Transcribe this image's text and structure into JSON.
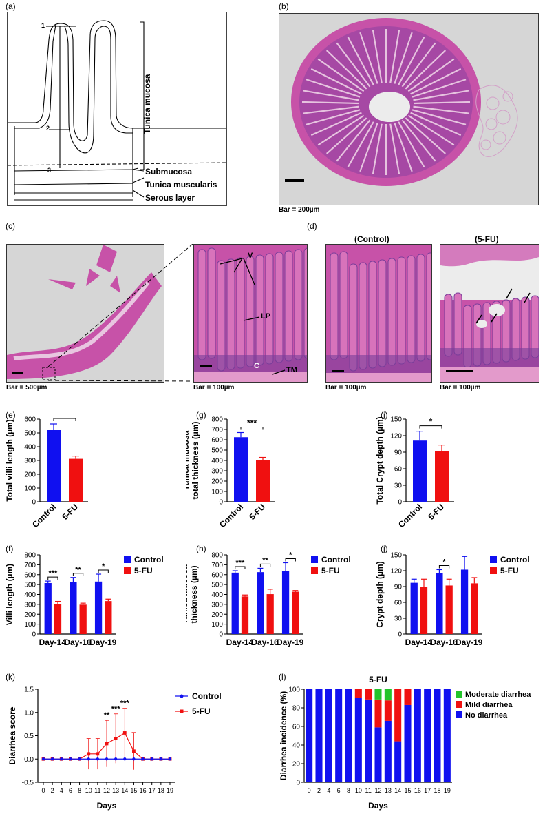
{
  "panels": {
    "a": "(a)",
    "b": "(b)",
    "c": "(c)",
    "d": "(d)",
    "e": "(e)",
    "f": "(f)",
    "g": "(g)",
    "h": "(h)",
    "i": "(i)",
    "j": "(j)",
    "k": "(k)",
    "l": "(l)"
  },
  "diagram": {
    "marks": [
      "1",
      "2",
      "3"
    ],
    "labels": {
      "tunica_mucosa": "Tunica mucosa",
      "submucosa": "Submucosa",
      "tunica_muscularis": "Tunica muscularis",
      "serous_layer": "Serous layer"
    }
  },
  "micrographs": {
    "b": {
      "scale": "Bar = 200µm"
    },
    "c_left": {
      "scale": "Bar = 500µm"
    },
    "c_right": {
      "scale": "Bar = 100µm",
      "labels": [
        "V",
        "LP",
        "C",
        "TM"
      ]
    },
    "d_control": {
      "title": "(Control)",
      "scale": "Bar = 100µm"
    },
    "d_5fu": {
      "title": "(5-FU)",
      "scale": "Bar = 100µm"
    }
  },
  "colors": {
    "control": "#1010f0",
    "fu": "#f01010",
    "moderate": "#22c42a",
    "tissue": "#c64fa6",
    "slide": "#d8d8d8"
  },
  "chart_data": [
    {
      "panel": "e",
      "type": "bar",
      "categories": [
        "Control",
        "5-FU"
      ],
      "values": [
        520,
        312
      ],
      "errors": [
        45,
        20
      ],
      "ylabel": "Total villi length (µm)",
      "ylim": [
        0,
        600
      ],
      "yticks": [
        "0",
        "100",
        "200",
        "300",
        "400",
        "500",
        "600"
      ],
      "sig": "***"
    },
    {
      "panel": "g",
      "type": "bar",
      "categories": [
        "Control",
        "5-FU"
      ],
      "values": [
        625,
        402
      ],
      "errors": [
        45,
        28
      ],
      "ylabel": "Tunica mucosa",
      "ylabel2": "total thickness (µm)",
      "ylim": [
        0,
        800
      ],
      "yticks": [
        "0",
        "100",
        "200",
        "300",
        "400",
        "500",
        "600",
        "700",
        "800"
      ],
      "sig": "***"
    },
    {
      "panel": "i",
      "type": "bar",
      "categories": [
        "Control",
        "5-FU"
      ],
      "values": [
        111,
        92
      ],
      "errors": [
        17,
        11
      ],
      "ylabel": "Total Crypt depth (µm)",
      "ylim": [
        0,
        150
      ],
      "yticks": [
        "0",
        "30",
        "60",
        "90",
        "120",
        "150"
      ],
      "sig": "*"
    },
    {
      "panel": "f",
      "type": "bar",
      "categories": [
        "Day-14",
        "Day-16",
        "Day-19"
      ],
      "series": [
        {
          "name": "Control",
          "values": [
            515,
            522,
            530
          ],
          "errors": [
            20,
            50,
            75
          ]
        },
        {
          "name": "5-FU",
          "values": [
            305,
            297,
            333
          ],
          "errors": [
            25,
            15,
            20
          ]
        }
      ],
      "ylabel": "Villi length (µm)",
      "ylim": [
        0,
        800
      ],
      "yticks": [
        "0",
        "100",
        "200",
        "300",
        "400",
        "500",
        "600",
        "700",
        "800"
      ],
      "sig": [
        "***",
        "**",
        "*"
      ],
      "legend": "right"
    },
    {
      "panel": "h",
      "type": "bar",
      "categories": [
        "Day-14",
        "Day-16",
        "Day-19"
      ],
      "series": [
        {
          "name": "Control",
          "values": [
            620,
            625,
            640
          ],
          "errors": [
            20,
            40,
            80
          ]
        },
        {
          "name": "5-FU",
          "values": [
            380,
            403,
            428
          ],
          "errors": [
            15,
            50,
            12
          ]
        }
      ],
      "ylabel": "Tunica mucosa",
      "ylabel2": "thickness (µm)",
      "ylim": [
        0,
        800
      ],
      "yticks": [
        "0",
        "100",
        "200",
        "300",
        "400",
        "500",
        "600",
        "700",
        "800"
      ],
      "sig": [
        "***",
        "**",
        "*"
      ],
      "legend": "right"
    },
    {
      "panel": "j",
      "type": "bar",
      "categories": [
        "Day-14",
        "Day-16",
        "Day-19"
      ],
      "series": [
        {
          "name": "Control",
          "values": [
            97,
            115,
            122
          ],
          "errors": [
            7,
            7,
            25
          ]
        },
        {
          "name": "5-FU",
          "values": [
            90,
            92,
            96
          ],
          "errors": [
            14,
            12,
            11
          ]
        }
      ],
      "ylabel": "Crypt depth (µm)",
      "ylim": [
        0,
        150
      ],
      "yticks": [
        "0",
        "30",
        "60",
        "90",
        "120",
        "150"
      ],
      "sig": [
        null,
        "*",
        null
      ],
      "legend": "right"
    },
    {
      "panel": "k",
      "type": "line",
      "x": [
        "0",
        "2",
        "4",
        "6",
        "8",
        "10",
        "11",
        "12",
        "13",
        "14",
        "15",
        "16",
        "17",
        "18",
        "19"
      ],
      "series": [
        {
          "name": "Control",
          "values": [
            0,
            0,
            0,
            0,
            0,
            0,
            0,
            0,
            0,
            0,
            0,
            0,
            0,
            0,
            0
          ],
          "errors": [
            0,
            0,
            0,
            0,
            0,
            0,
            0,
            0,
            0,
            0,
            0,
            0,
            0,
            0,
            0
          ]
        },
        {
          "name": "5-FU",
          "values": [
            0,
            0,
            0,
            0,
            0,
            0.11,
            0.11,
            0.33,
            0.44,
            0.56,
            0.17,
            0,
            0,
            0,
            0
          ],
          "errors": [
            0,
            0,
            0,
            0,
            0,
            0.33,
            0.33,
            0.5,
            0.53,
            0.53,
            0.4,
            0,
            0,
            0,
            0
          ]
        }
      ],
      "xlabel": "Days",
      "ylabel": "Diarrhea score",
      "ylim": [
        -0.5,
        1.5
      ],
      "yticks": [
        "-0.5",
        "0.0",
        "0.5",
        "1.0",
        "1.5"
      ],
      "sig": {
        "12": "**",
        "13": "***",
        "14": "***"
      },
      "legend": "top-right"
    },
    {
      "panel": "l",
      "type": "bar",
      "stacked": true,
      "title": "5-FU",
      "categories": [
        "0",
        "2",
        "4",
        "6",
        "8",
        "10",
        "11",
        "12",
        "13",
        "14",
        "15",
        "16",
        "17",
        "18",
        "19"
      ],
      "series": [
        {
          "name": "No diarrhea",
          "values": [
            100,
            100,
            100,
            100,
            100,
            91,
            89,
            59,
            66,
            44,
            83,
            100,
            100,
            100,
            100
          ]
        },
        {
          "name": "Mild diarrhea",
          "values": [
            0,
            0,
            0,
            0,
            0,
            9,
            11,
            30,
            22,
            56,
            17,
            0,
            0,
            0,
            0
          ]
        },
        {
          "name": "Moderate diarrhea",
          "values": [
            0,
            0,
            0,
            0,
            0,
            0,
            0,
            11,
            12,
            0,
            0,
            0,
            0,
            0,
            0
          ]
        }
      ],
      "xlabel": "Days",
      "ylabel": "Diarrhea incidence (%)",
      "ylim": [
        0,
        100
      ],
      "yticks": [
        "0",
        "20",
        "40",
        "60",
        "80",
        "100"
      ],
      "legend": "right"
    }
  ]
}
